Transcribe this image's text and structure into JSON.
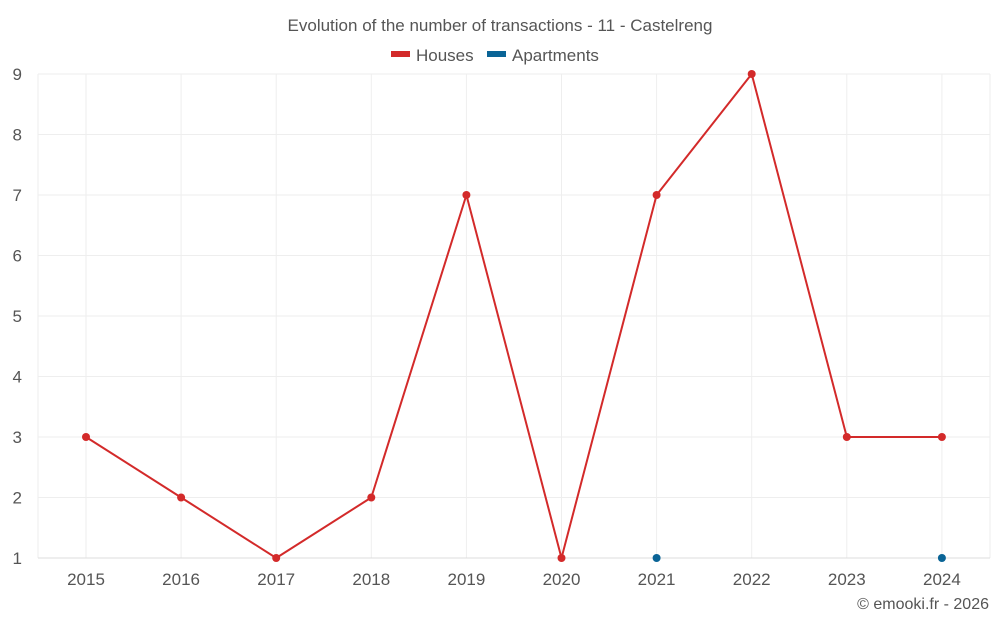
{
  "chart_data": {
    "type": "line",
    "title": "Evolution of the number of transactions - 11 - Castelreng",
    "categories": [
      "2015",
      "2016",
      "2017",
      "2018",
      "2019",
      "2020",
      "2021",
      "2022",
      "2023",
      "2024"
    ],
    "series": [
      {
        "name": "Houses",
        "color": "#d32a2a",
        "values": [
          3,
          2,
          1,
          2,
          7,
          1,
          7,
          9,
          3,
          3
        ]
      },
      {
        "name": "Apartments",
        "color": "#0a6496",
        "values": [
          null,
          null,
          null,
          null,
          null,
          null,
          1,
          null,
          null,
          1
        ]
      }
    ],
    "ylim": [
      1,
      9
    ],
    "yticks": [
      1,
      2,
      3,
      4,
      5,
      6,
      7,
      8,
      9
    ],
    "xlabel": "",
    "ylabel": "",
    "grid": true,
    "legend": "top-center"
  },
  "credit": "© emooki.fr - 2026"
}
